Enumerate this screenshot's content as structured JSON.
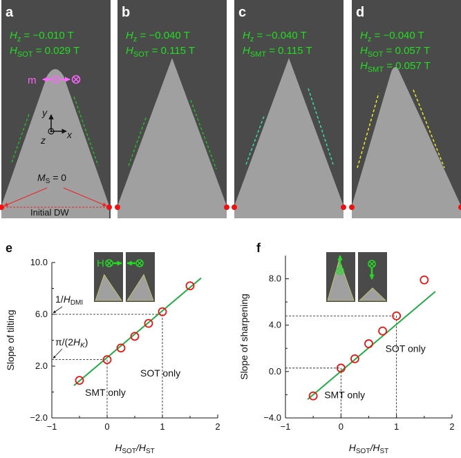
{
  "panels": [
    {
      "letter": "a",
      "lines": [
        [
          "H",
          "z",
          " = −0.010 T"
        ],
        [
          "H",
          "SOT",
          " = 0.029 T"
        ]
      ]
    },
    {
      "letter": "b",
      "lines": [
        [
          "H",
          "z",
          " = −0.040 T"
        ],
        [
          "H",
          "SOT",
          " = 0.115 T"
        ]
      ]
    },
    {
      "letter": "c",
      "lines": [
        [
          "H",
          "z",
          " = −0.040 T"
        ],
        [
          "H",
          "SMT",
          " = 0.115 T"
        ]
      ]
    },
    {
      "letter": "d",
      "lines": [
        [
          "H",
          "z",
          " = −0.040 T"
        ],
        [
          "H",
          "SOT",
          " = 0.057 T"
        ],
        [
          "H",
          "SMT",
          " = 0.057 T"
        ]
      ]
    }
  ],
  "panel_a_labels": {
    "m": "m",
    "ms": "M",
    "ms_sub": "S",
    "ms_rest": " = 0",
    "initial": "Initial DW",
    "axis_x": "x",
    "axis_y": "y",
    "axis_z": "z"
  },
  "colors": {
    "panel_bg": "#4a4a4a",
    "domain": "#a0a0a0",
    "green_text": "#22dd22",
    "pink": "#ff66ff",
    "red": "#ee2222",
    "fit_line": "#22aa44",
    "marker": "#ee1111",
    "yellow_dash": "#eeee22",
    "cyan_dash": "#33ddaa"
  },
  "chart_data": [
    {
      "type": "scatter",
      "letter": "e",
      "xlabel_main": "H",
      "xlabel_sub": "SOT",
      "xlabel_rest": "/H",
      "xlabel_sub2": "ST",
      "ylabel": "Slope of tilting",
      "xlim": [
        -1,
        2
      ],
      "ylim": [
        -2,
        10
      ],
      "xticks": [
        "-1",
        "0",
        "1",
        "2"
      ],
      "yticks": [
        "−2.0",
        "2.0",
        "6.0",
        "10.0"
      ],
      "ytick_values": [
        -2,
        2,
        6,
        10
      ],
      "x": [
        -0.5,
        0,
        0.25,
        0.5,
        0.75,
        1,
        1.5
      ],
      "y": [
        0.9,
        2.5,
        3.4,
        4.3,
        5.3,
        6.2,
        8.2
      ],
      "fit": {
        "x": [
          -0.6,
          1.7
        ],
        "y": [
          0.5,
          8.8
        ]
      },
      "annotations": [
        {
          "text": "SMT only",
          "x": -0.4,
          "y": -0.3
        },
        {
          "text": "SOT only",
          "x": 0.6,
          "y": 1.2
        }
      ],
      "refs": [
        {
          "label": "1/H",
          "sub": "DMI",
          "x": 1,
          "y": 6.0
        },
        {
          "label": "π/(2H",
          "sub": "K",
          "tail": ")",
          "x": 0,
          "y": 2.5
        }
      ],
      "inset_label": "H"
    },
    {
      "type": "scatter",
      "letter": "f",
      "xlabel_main": "H",
      "xlabel_sub": "SOT",
      "xlabel_rest": "/H",
      "xlabel_sub2": "ST",
      "ylabel": "Slope of sharpening",
      "xlim": [
        -1,
        2
      ],
      "ylim": [
        -4,
        10
      ],
      "xticks": [
        "-1",
        "0",
        "1",
        "2"
      ],
      "yticks": [
        "−4.0",
        "0.0",
        "4.0",
        "8.0"
      ],
      "ytick_values": [
        -4,
        0,
        4,
        8
      ],
      "x": [
        -0.5,
        0,
        0.25,
        0.5,
        0.75,
        1,
        1.5
      ],
      "y": [
        -2.1,
        0.3,
        1.1,
        2.4,
        3.5,
        4.8,
        7.9
      ],
      "fit": {
        "x": [
          -0.6,
          1.7
        ],
        "y": [
          -2.4,
          6.9
        ]
      },
      "annotations": [
        {
          "text": "SMT only",
          "x": -0.3,
          "y": -2.3
        },
        {
          "text": "SOT only",
          "x": 0.8,
          "y": 1.7
        }
      ],
      "refs": [
        {
          "x": 1,
          "y": 4.8
        },
        {
          "x": 0,
          "y": 0.3
        }
      ]
    }
  ]
}
